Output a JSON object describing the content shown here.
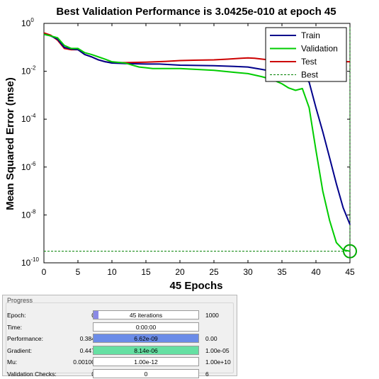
{
  "chart_data": {
    "type": "line",
    "title": "Best Validation Performance is 3.0425e-010 at epoch 45",
    "xlabel": "45 Epochs",
    "ylabel": "Mean Squared Error  (mse)",
    "xlim": [
      0,
      45
    ],
    "ylim": [
      1e-10,
      1
    ],
    "yscale": "log",
    "xticks": [
      0,
      5,
      10,
      15,
      20,
      25,
      30,
      35,
      40,
      45
    ],
    "yticks": [
      {
        "base": "10",
        "exp": "0",
        "value": 1
      },
      {
        "base": "10",
        "exp": "-2",
        "value": 0.01
      },
      {
        "base": "10",
        "exp": "-4",
        "value": 0.0001
      },
      {
        "base": "10",
        "exp": "-6",
        "value": 1e-06
      },
      {
        "base": "10",
        "exp": "-8",
        "value": 1e-08
      },
      {
        "base": "10",
        "exp": "-10",
        "value": 1e-10
      }
    ],
    "grid": false,
    "legend_position": "top-right",
    "series": [
      {
        "name": "Train",
        "color": "#00008b",
        "style": "solid",
        "x": [
          0,
          1,
          2,
          3,
          4,
          5,
          6,
          7,
          8,
          9,
          10,
          12,
          15,
          17,
          20,
          25,
          28,
          30,
          32,
          34,
          36,
          37,
          38,
          39,
          40,
          41,
          42,
          43,
          44,
          45
        ],
        "y": [
          0.35,
          0.3,
          0.22,
          0.1,
          0.085,
          0.08,
          0.05,
          0.04,
          0.03,
          0.025,
          0.022,
          0.021,
          0.02,
          0.02,
          0.018,
          0.017,
          0.016,
          0.015,
          0.012,
          0.0095,
          0.008,
          0.0075,
          0.007,
          0.0035,
          0.0003,
          3e-05,
          2.5e-06,
          2e-07,
          2e-08,
          4e-09
        ]
      },
      {
        "name": "Validation",
        "color": "#00cc00",
        "style": "solid",
        "x": [
          0,
          1,
          2,
          3,
          4,
          5,
          6,
          7,
          8,
          9,
          10,
          12,
          13,
          14,
          15,
          16,
          17,
          20,
          25,
          28,
          30,
          32,
          33,
          34,
          35,
          36,
          37,
          38,
          39,
          40,
          41,
          42,
          43,
          44,
          45
        ],
        "y": [
          0.35,
          0.3,
          0.25,
          0.12,
          0.09,
          0.09,
          0.06,
          0.05,
          0.04,
          0.032,
          0.025,
          0.022,
          0.018,
          0.015,
          0.014,
          0.013,
          0.013,
          0.013,
          0.011,
          0.009,
          0.008,
          0.006,
          0.005,
          0.004,
          0.003,
          0.002,
          0.0016,
          0.0019,
          0.0003,
          5e-06,
          1e-07,
          6e-09,
          7e-10,
          3.5e-10,
          3.0425e-10
        ]
      },
      {
        "name": "Test",
        "color": "#cc0000",
        "style": "solid",
        "x": [
          0,
          1,
          2,
          3,
          4,
          5,
          6,
          7,
          8,
          9,
          10,
          12,
          15,
          18,
          20,
          22,
          25,
          27,
          29,
          30,
          31,
          33,
          35,
          37,
          40,
          42,
          44,
          45
        ],
        "y": [
          0.4,
          0.32,
          0.2,
          0.09,
          0.08,
          0.08,
          0.05,
          0.04,
          0.03,
          0.025,
          0.023,
          0.023,
          0.024,
          0.026,
          0.028,
          0.029,
          0.03,
          0.032,
          0.035,
          0.036,
          0.035,
          0.03,
          0.026,
          0.025,
          0.025,
          0.025,
          0.025,
          0.025
        ]
      },
      {
        "name": "Best",
        "color": "#008000",
        "style": "dashed",
        "x": [
          0,
          45,
          45
        ],
        "y": [
          3.0425e-10,
          3.0425e-10,
          1
        ]
      }
    ],
    "best_marker": {
      "x": 45,
      "y": 3.0425e-10
    }
  },
  "progress": {
    "title": "Progress",
    "rows": [
      {
        "label": "Epoch:",
        "initial": "0",
        "current": "45 iterations",
        "target": "1000",
        "fill": 0.045,
        "fill_color": "#8a8ae6"
      },
      {
        "label": "Time:",
        "initial": "",
        "current": "0:00:00",
        "target": "",
        "fill": 0,
        "fill_color": "#8a8ae6"
      },
      {
        "label": "Performance:",
        "initial": "0.384",
        "current": "6.62e-09",
        "target": "0.00",
        "fill": 1,
        "fill_color": "#6b8ce8"
      },
      {
        "label": "Gradient:",
        "initial": "0.447",
        "current": "8.14e-06",
        "target": "1.00e-05",
        "fill": 1,
        "fill_color": "#66e0a3"
      },
      {
        "label": "Mu:",
        "initial": "0.00100",
        "current": "1.00e-12",
        "target": "1.00e+10",
        "fill": 0,
        "fill_color": "#8a8ae6"
      },
      {
        "label": "Validation Checks:",
        "initial": "0",
        "current": "0",
        "target": "6",
        "fill": 0,
        "fill_color": "#8a8ae6"
      }
    ]
  }
}
